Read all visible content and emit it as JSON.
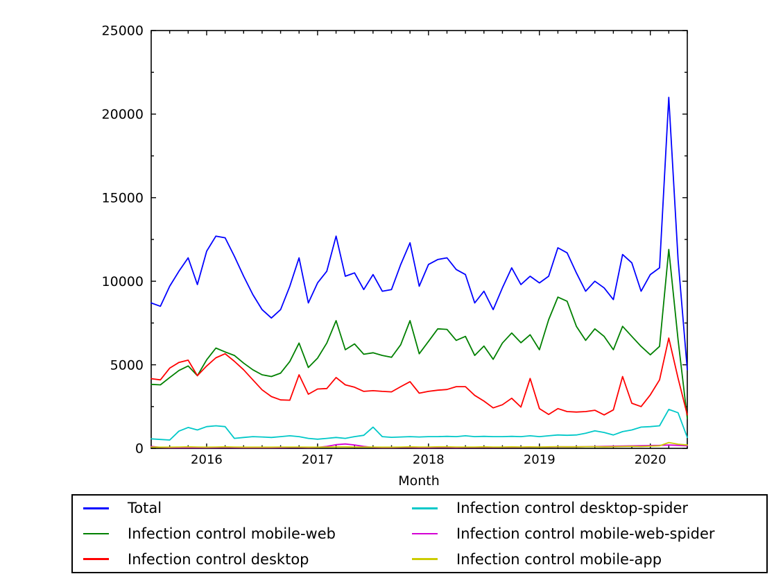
{
  "chart_data": {
    "type": "line",
    "title": "",
    "xlabel": "Month",
    "ylabel": "",
    "ylim": [
      0,
      25000
    ],
    "grid": false,
    "legend_position": "bottom",
    "y_ticks": [
      {
        "value": 0,
        "label": "0"
      },
      {
        "value": 5000,
        "label": "5000"
      },
      {
        "value": 10000,
        "label": "10000"
      },
      {
        "value": 15000,
        "label": "15000"
      },
      {
        "value": 20000,
        "label": "20000"
      },
      {
        "value": 25000,
        "label": "25000"
      }
    ],
    "y_minor_step": 2500,
    "x_minor_every_months": 2,
    "x_major_ticks": [
      {
        "month": "2016-01",
        "label": "2016"
      },
      {
        "month": "2017-01",
        "label": "2017"
      },
      {
        "month": "2018-01",
        "label": "2018"
      },
      {
        "month": "2019-01",
        "label": "2019"
      },
      {
        "month": "2020-01",
        "label": "2020"
      }
    ],
    "x_months": [
      "2015-07",
      "2015-08",
      "2015-09",
      "2015-10",
      "2015-11",
      "2015-12",
      "2016-01",
      "2016-02",
      "2016-03",
      "2016-04",
      "2016-05",
      "2016-06",
      "2016-07",
      "2016-08",
      "2016-09",
      "2016-10",
      "2016-11",
      "2016-12",
      "2017-01",
      "2017-02",
      "2017-03",
      "2017-04",
      "2017-05",
      "2017-06",
      "2017-07",
      "2017-08",
      "2017-09",
      "2017-10",
      "2017-11",
      "2017-12",
      "2018-01",
      "2018-02",
      "2018-03",
      "2018-04",
      "2018-05",
      "2018-06",
      "2018-07",
      "2018-08",
      "2018-09",
      "2018-10",
      "2018-11",
      "2018-12",
      "2019-01",
      "2019-02",
      "2019-03",
      "2019-04",
      "2019-05",
      "2019-06",
      "2019-07",
      "2019-08",
      "2019-09",
      "2019-10",
      "2019-11",
      "2019-12",
      "2020-01",
      "2020-02",
      "2020-03",
      "2020-04",
      "2020-05"
    ],
    "series": [
      {
        "name": "Total",
        "color": "#0000ff",
        "values": [
          8700,
          8500,
          9700,
          10600,
          11400,
          9800,
          11800,
          12700,
          12600,
          11500,
          10300,
          9200,
          8300,
          7800,
          8300,
          9700,
          11400,
          8700,
          9900,
          10600,
          12700,
          10300,
          10500,
          9500,
          10400,
          9400,
          9500,
          11000,
          12300,
          9700,
          11000,
          11300,
          11400,
          10700,
          10400,
          8700,
          9400,
          8300,
          9600,
          10800,
          9800,
          10300,
          9900,
          10300,
          12000,
          11700,
          10500,
          9400,
          10000,
          9600,
          8900,
          11600,
          11100,
          9400,
          10400,
          10800,
          21000,
          11300,
          4700
        ]
      },
      {
        "name": "Infection control mobile-web",
        "color": "#008000",
        "values": [
          3830,
          3800,
          4240,
          4660,
          4930,
          4350,
          5300,
          6000,
          5770,
          5560,
          5100,
          4700,
          4400,
          4300,
          4500,
          5200,
          6300,
          4840,
          5400,
          6300,
          7640,
          5900,
          6250,
          5630,
          5720,
          5560,
          5450,
          6200,
          7640,
          5660,
          6400,
          7150,
          7120,
          6460,
          6700,
          5560,
          6120,
          5330,
          6300,
          6900,
          6320,
          6800,
          5900,
          7700,
          9050,
          8800,
          7300,
          6460,
          7150,
          6700,
          5900,
          7300,
          6700,
          6100,
          5600,
          6100,
          11900,
          6500,
          1800
        ]
      },
      {
        "name": "Infection control desktop",
        "color": "#ff0000",
        "values": [
          4170,
          4100,
          4800,
          5140,
          5280,
          4350,
          4930,
          5420,
          5660,
          5210,
          4700,
          4100,
          3500,
          3100,
          2900,
          2880,
          4400,
          3240,
          3550,
          3580,
          4240,
          3800,
          3660,
          3410,
          3450,
          3410,
          3380,
          3690,
          3990,
          3300,
          3410,
          3480,
          3520,
          3690,
          3690,
          3170,
          2830,
          2420,
          2610,
          3000,
          2470,
          4180,
          2380,
          2030,
          2380,
          2200,
          2170,
          2200,
          2280,
          2000,
          2300,
          4300,
          2700,
          2500,
          3200,
          4100,
          6600,
          4200,
          2000
        ]
      },
      {
        "name": "Infection control desktop-spider",
        "color": "#00c8c8",
        "values": [
          570,
          530,
          500,
          1030,
          1250,
          1100,
          1300,
          1350,
          1300,
          600,
          650,
          700,
          680,
          650,
          700,
          750,
          700,
          600,
          550,
          600,
          650,
          600,
          700,
          780,
          1270,
          700,
          660,
          680,
          700,
          680,
          700,
          700,
          720,
          700,
          750,
          700,
          720,
          700,
          700,
          720,
          700,
          750,
          700,
          750,
          800,
          780,
          800,
          900,
          1050,
          950,
          800,
          1000,
          1100,
          1270,
          1300,
          1350,
          2330,
          2130,
          650
        ]
      },
      {
        "name": "Infection control mobile-web-spider",
        "color": "#d400d4",
        "values": [
          120,
          60,
          40,
          40,
          50,
          40,
          40,
          50,
          60,
          50,
          40,
          40,
          40,
          40,
          50,
          60,
          60,
          50,
          60,
          120,
          220,
          260,
          200,
          120,
          60,
          50,
          50,
          60,
          60,
          50,
          50,
          60,
          60,
          50,
          60,
          60,
          70,
          60,
          70,
          70,
          70,
          80,
          80,
          80,
          90,
          90,
          90,
          100,
          110,
          120,
          130,
          140,
          150,
          160,
          170,
          180,
          200,
          180,
          150
        ]
      },
      {
        "name": "Infection control mobile-app",
        "color": "#cccc00",
        "values": [
          80,
          70,
          70,
          80,
          90,
          80,
          70,
          80,
          90,
          80,
          70,
          70,
          70,
          70,
          80,
          80,
          80,
          70,
          70,
          80,
          90,
          90,
          80,
          80,
          80,
          70,
          70,
          80,
          90,
          80,
          80,
          90,
          90,
          80,
          80,
          80,
          90,
          80,
          80,
          90,
          80,
          90,
          80,
          90,
          100,
          90,
          90,
          100,
          100,
          90,
          100,
          110,
          120,
          110,
          130,
          150,
          350,
          250,
          200
        ]
      }
    ]
  },
  "legend": {
    "items": [
      {
        "label": "Total",
        "color": "#0000ff"
      },
      {
        "label": "Infection control mobile-web",
        "color": "#008000"
      },
      {
        "label": "Infection control desktop",
        "color": "#ff0000"
      },
      {
        "label": "Infection control desktop-spider",
        "color": "#00c8c8"
      },
      {
        "label": "Infection control mobile-web-spider",
        "color": "#d400d4"
      },
      {
        "label": "Infection control mobile-app",
        "color": "#cccc00"
      }
    ]
  }
}
